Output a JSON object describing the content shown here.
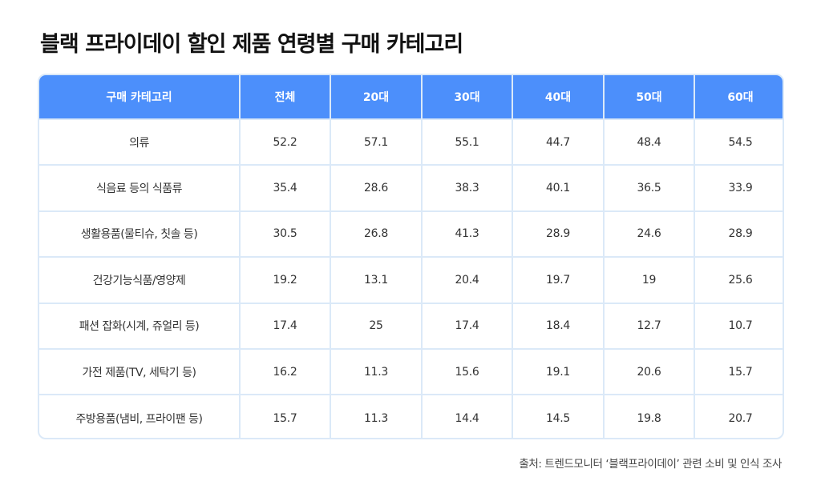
{
  "title": "블랙 프라이데이 할인 제품 연령별 구매 카테고리",
  "table": {
    "headers": [
      "구매 카테고리",
      "전체",
      "20대",
      "30대",
      "40대",
      "50대",
      "60대"
    ],
    "rows": [
      [
        "의류",
        "52.2",
        "57.1",
        "55.1",
        "44.7",
        "48.4",
        "54.5"
      ],
      [
        "식음료 등의 식품류",
        "35.4",
        "28.6",
        "38.3",
        "40.1",
        "36.5",
        "33.9"
      ],
      [
        "생활용품(물티슈, 칫솔 등)",
        "30.5",
        "26.8",
        "41.3",
        "28.9",
        "24.6",
        "28.9"
      ],
      [
        "건강기능식품/영양제",
        "19.2",
        "13.1",
        "20.4",
        "19.7",
        "19",
        "25.6"
      ],
      [
        "패션 잡화(시계, 쥬얼리 등)",
        "17.4",
        "25",
        "17.4",
        "18.4",
        "12.7",
        "10.7"
      ],
      [
        "가전 제품(TV, 세탁기 등)",
        "16.2",
        "11.3",
        "15.6",
        "19.1",
        "20.6",
        "15.7"
      ],
      [
        "주방용품(냄비, 프라이팬 등)",
        "15.7",
        "11.3",
        "14.4",
        "14.5",
        "19.8",
        "20.7"
      ]
    ]
  },
  "source": "출처: 트렌드모니터 ‘블랙프라이데이’ 관련 소비 및 인식 조사",
  "colors": {
    "header_bg": "#4c8ffb",
    "header_text": "#ffffff",
    "grid_line": "#dbe9f8"
  }
}
